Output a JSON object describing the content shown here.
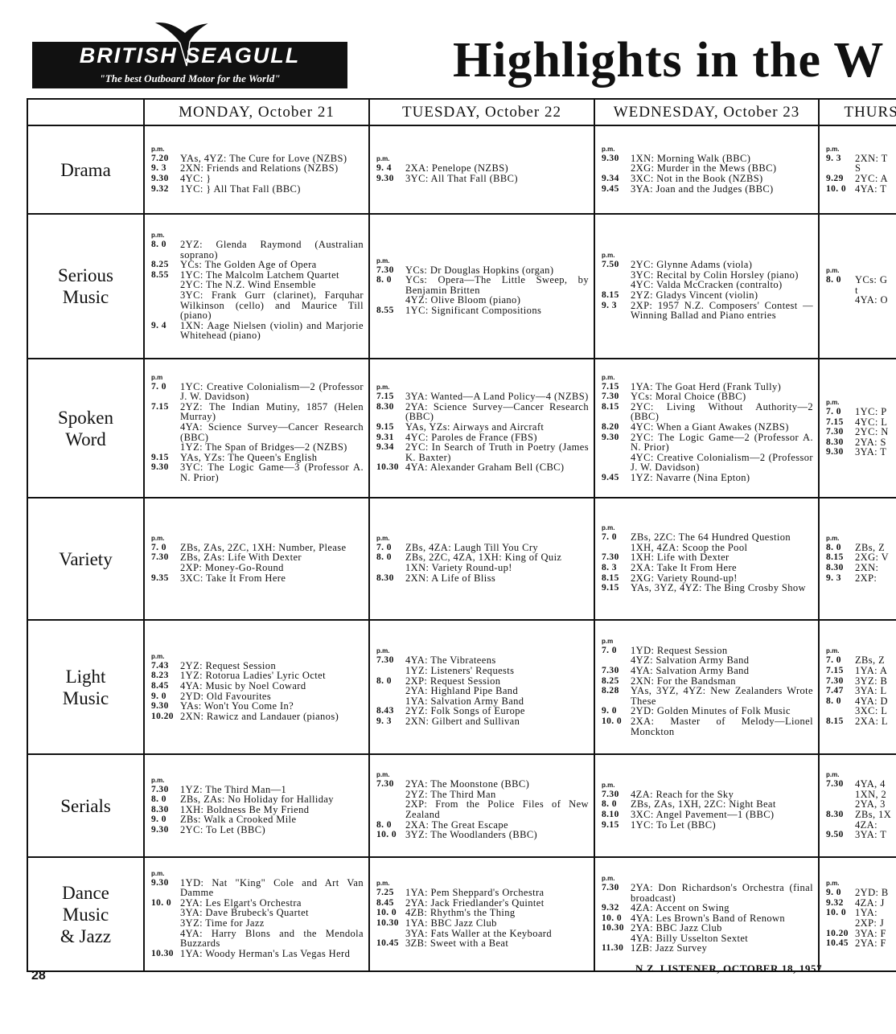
{
  "header": {
    "brand": "BRITISH SEAGULL",
    "tagline": "\"The best Outboard Motor for the World\"",
    "title": "Highlights in the W"
  },
  "columns": [
    "MONDAY, October 21",
    "TUESDAY, October 22",
    "WEDNESDAY, October 23",
    "THURS."
  ],
  "rows": [
    {
      "label_lines": [
        "Drama"
      ],
      "cells": [
        {
          "pm": "p.m.",
          "entries": [
            {
              "time": "7.20",
              "text": "YAs, 4YZ: The Cure for Love (NZBS)"
            },
            {
              "time": "9. 3",
              "text": "2XN: Friends and Relations (NZBS)"
            },
            {
              "time": "9.30",
              "text": "4YC: }"
            },
            {
              "time": "9.32",
              "text": "1YC: } All That Fall (BBC)"
            }
          ]
        },
        {
          "pm": "p.m.",
          "entries": [
            {
              "time": "9. 4",
              "text": "2XA: Penelope (NZBS)"
            },
            {
              "time": "9.30",
              "text": "3YC: All That Fall (BBC)"
            }
          ]
        },
        {
          "pm": "p.m.",
          "entries": [
            {
              "time": "9.30",
              "text": "1XN: Morning Walk (BBC)"
            },
            {
              "text": "2XG: Murder in the Mews (BBC)"
            },
            {
              "time": "9.34",
              "text": "3XC: Not in the Book (NZBS)"
            },
            {
              "time": "9.45",
              "text": "3YA: Joan and the Judges (BBC)"
            }
          ]
        },
        {
          "pm": "p.m.",
          "entries": [
            {
              "time": "9. 3",
              "text": "2XN: T"
            },
            {
              "text": "S"
            },
            {
              "time": "9.29",
              "text": "2YC: A"
            },
            {
              "time": "10. 0",
              "text": "4YA: T"
            }
          ]
        }
      ]
    },
    {
      "label_lines": [
        "Serious",
        "Music"
      ],
      "cells": [
        {
          "pm": "p.m.",
          "entries": [
            {
              "time": "8. 0",
              "text": "2YZ: Glenda Raymond (Australian soprano)"
            },
            {
              "time": "8.25",
              "text": "YCs: The Golden Age of Opera"
            },
            {
              "time": "8.55",
              "text": "1YC: The Malcolm Latchem Quartet"
            },
            {
              "text": "2YC: The N.Z. Wind Ensemble"
            },
            {
              "text": "3YC: Frank Gurr (clarinet), Farquhar Wilkinson (cello) and Maurice Till (piano)"
            },
            {
              "time": "9. 4",
              "text": "1XN: Aage Nielsen (violin) and Marjorie Whitehead (piano)"
            }
          ]
        },
        {
          "pm": "p.m.",
          "entries": [
            {
              "time": "7.30",
              "text": "YCs: Dr Douglas Hopkins (organ)"
            },
            {
              "time": "8. 0",
              "text": "YCs: Opera—The Little Sweep, by Benjamin Britten"
            },
            {
              "text": "4YZ: Olive Bloom (piano)"
            },
            {
              "time": "8.55",
              "text": "1YC: Significant Compositions"
            }
          ]
        },
        {
          "pm": "p.m.",
          "entries": [
            {
              "time": "7.50",
              "text": "2YC: Glynne Adams (viola)"
            },
            {
              "text": "3YC: Recital by Colin Horsley (piano)"
            },
            {
              "text": "4YC: Valda McCracken (contralto)"
            },
            {
              "time": "8.15",
              "text": "2YZ: Gladys Vincent (violin)"
            },
            {
              "time": "9. 3",
              "text": "2XP: 1957 N.Z. Composers' Contest — Winning Ballad and Piano entries"
            }
          ]
        },
        {
          "pm": "p.m.",
          "entries": [
            {
              "time": "8. 0",
              "text": "YCs: G"
            },
            {
              "text": "t"
            },
            {
              "text": "4YA: O"
            }
          ]
        }
      ]
    },
    {
      "label_lines": [
        "Spoken",
        "Word"
      ],
      "cells": [
        {
          "pm": "p.m",
          "entries": [
            {
              "time": "7. 0",
              "text": "1YC: Creative Colonialism—2 (Professor J. W. Davidson)"
            },
            {
              "time": "7.15",
              "text": "2YZ: The Indian Mutiny, 1857 (Helen Murray)"
            },
            {
              "text": "4YA: Science Survey—Cancer Research (BBC)"
            },
            {
              "text": "1YZ: The Span of Bridges—2 (NZBS)"
            },
            {
              "time": "9.15",
              "text": "YAs, YZs: The Queen's English"
            },
            {
              "time": "9.30",
              "text": "3YC: The Logic Game—3 (Professor A. N. Prior)"
            }
          ]
        },
        {
          "pm": "p.m.",
          "entries": [
            {
              "time": "7.15",
              "text": "3YA: Wanted—A Land Policy—4 (NZBS)"
            },
            {
              "time": "8.30",
              "text": "2YA: Science Survey—Cancer Research (BBC)"
            },
            {
              "time": "9.15",
              "text": "YAs, YZs: Airways and Aircraft"
            },
            {
              "time": "9.31",
              "text": "4YC: Paroles de France (FBS)"
            },
            {
              "time": "9.34",
              "text": "2YC: In Search of Truth in Poetry (James K. Baxter)"
            },
            {
              "time": "10.30",
              "text": "4YA: Alexander Graham Bell (CBC)"
            }
          ]
        },
        {
          "pm": "p.m.",
          "entries": [
            {
              "time": "7.15",
              "text": "1YA: The Goat Herd (Frank Tully)"
            },
            {
              "time": "7.30",
              "text": "YCs: Moral Choice (BBC)"
            },
            {
              "time": "8.15",
              "text": "2YC: Living Without Authority—2 (BBC)"
            },
            {
              "time": "8.20",
              "text": "4YC: When a Giant Awakes (NZBS)"
            },
            {
              "time": "9.30",
              "text": "2YC: The Logic Game—2 (Professor A. N. Prior)"
            },
            {
              "text": "4YC: Creative Colonialism—2 (Professor J. W. Davidson)"
            },
            {
              "time": "9.45",
              "text": "1YZ: Navarre (Nina Epton)"
            }
          ]
        },
        {
          "pm": "p.m.",
          "entries": [
            {
              "time": "7. 0",
              "text": "1YC: P"
            },
            {
              "time": "7.15",
              "text": "4YC: L"
            },
            {
              "time": "7.30",
              "text": "2YC: N"
            },
            {
              "time": "8.30",
              "text": "2YA: S"
            },
            {
              "time": "9.30",
              "text": "3YA: T"
            }
          ]
        }
      ]
    },
    {
      "label_lines": [
        "Variety"
      ],
      "cells": [
        {
          "pm": "p.m.",
          "entries": [
            {
              "time": "7. 0",
              "text": "ZBs, ZAs, 2ZC, 1XH: Number, Please"
            },
            {
              "time": "7.30",
              "text": "ZBs, ZAs: Life With Dexter"
            },
            {
              "text": "2XP: Money-Go-Round"
            },
            {
              "time": "9.35",
              "text": "3XC: Take It From Here"
            }
          ]
        },
        {
          "pm": "p.m.",
          "entries": [
            {
              "time": "7. 0",
              "text": "ZBs, 4ZA: Laugh Till You Cry"
            },
            {
              "time": "8. 0",
              "text": "ZBs, 2ZC, 4ZA, 1XH: King of Quiz"
            },
            {
              "text": "1XN: Variety Round-up!"
            },
            {
              "time": "8.30",
              "text": "2XN: A Life of Bliss"
            }
          ]
        },
        {
          "pm": "p.m.",
          "entries": [
            {
              "time": "7. 0",
              "text": "ZBs, 2ZC: The 64 Hundred Question"
            },
            {
              "text": "1XH, 4ZA: Scoop the Pool"
            },
            {
              "time": "7.30",
              "text": "1XH: Life with Dexter"
            },
            {
              "time": "8. 3",
              "text": "2XA: Take It From Here"
            },
            {
              "time": "8.15",
              "text": "2XG: Variety Round-up!"
            },
            {
              "time": "9.15",
              "text": "YAs, 3YZ, 4YZ: The Bing Crosby Show"
            }
          ]
        },
        {
          "pm": "p.m.",
          "entries": [
            {
              "time": "8. 0",
              "text": "ZBs, Z"
            },
            {
              "time": "8.15",
              "text": "2XG: V"
            },
            {
              "time": "8.30",
              "text": "2XN:"
            },
            {
              "time": "9. 3",
              "text": "2XP:"
            }
          ]
        }
      ]
    },
    {
      "label_lines": [
        "Light",
        "Music"
      ],
      "cells": [
        {
          "pm": "p.m.",
          "entries": [
            {
              "time": "7.43",
              "text": "2YZ: Request Session"
            },
            {
              "time": "8.23",
              "text": "1YZ: Rotorua Ladies' Lyric Octet"
            },
            {
              "time": "8.45",
              "text": "4YA: Music by Noel Coward"
            },
            {
              "time": "9. 0",
              "text": "2YD: Old Favourites"
            },
            {
              "time": "9.30",
              "text": "YAs: Won't You Come In?"
            },
            {
              "time": "10.20",
              "text": "2XN: Rawicz and Landauer (pianos)"
            }
          ]
        },
        {
          "pm": "p.m.",
          "entries": [
            {
              "time": "7.30",
              "text": "4YA: The Vibrateens"
            },
            {
              "text": "1YZ: Listeners' Requests"
            },
            {
              "time": "8. 0",
              "text": "2XP: Request Session"
            },
            {
              "text": "2YA: Highland Pipe Band"
            },
            {
              "text": "1YA: Salvation Army Band"
            },
            {
              "time": "8.43",
              "text": "2YZ: Folk Songs of Europe"
            },
            {
              "time": "9. 3",
              "text": "2XN: Gilbert and Sullivan"
            }
          ]
        },
        {
          "pm": "p.m",
          "entries": [
            {
              "time": "7. 0",
              "text": "1YD: Request Session"
            },
            {
              "text": "4YZ: Salvation Army Band"
            },
            {
              "time": "7.30",
              "text": "4YA: Salvation Army Band"
            },
            {
              "time": "8.25",
              "text": "2XN: For the Bandsman"
            },
            {
              "time": "8.28",
              "text": "YAs, 3YZ, 4YZ: New Zealanders Wrote These"
            },
            {
              "time": "9. 0",
              "text": "2YD: Golden Minutes of Folk Music"
            },
            {
              "time": "10. 0",
              "text": "2XA: Master of Melody—Lionel Monckton"
            }
          ]
        },
        {
          "pm": "p.m.",
          "entries": [
            {
              "time": "7. 0",
              "text": "ZBs, Z"
            },
            {
              "time": "7.15",
              "text": "1YA: A"
            },
            {
              "time": "7.30",
              "text": "3YZ: B"
            },
            {
              "time": "7.47",
              "text": "3YA: L"
            },
            {
              "time": "8. 0",
              "text": "4YA: D"
            },
            {
              "text": "3XC: L"
            },
            {
              "time": "8.15",
              "text": "2XA: L"
            }
          ]
        }
      ]
    },
    {
      "label_lines": [
        "Serials"
      ],
      "cells": [
        {
          "pm": "p.m.",
          "entries": [
            {
              "time": "7.30",
              "text": "1YZ: The Third Man—1"
            },
            {
              "time": "8. 0",
              "text": "ZBs, ZAs: No Holiday for Halliday"
            },
            {
              "time": "8.30",
              "text": "1XH: Boldness Be My Friend"
            },
            {
              "time": "9. 0",
              "text": "ZBs: Walk a Crooked Mile"
            },
            {
              "time": "9.30",
              "text": "2YC: To Let (BBC)"
            }
          ]
        },
        {
          "pm": "p.m.",
          "entries": [
            {
              "time": "7.30",
              "text": "2YA: The Moonstone (BBC)"
            },
            {
              "text": "2YZ: The Third Man"
            },
            {
              "text": "2XP: From the Police Files of New Zealand"
            },
            {
              "time": "8. 0",
              "text": "2XA: The Great Escape"
            },
            {
              "time": "10. 0",
              "text": "3YZ: The Woodlanders (BBC)"
            }
          ]
        },
        {
          "pm": "p.m.",
          "entries": [
            {
              "time": "7.30",
              "text": "4ZA: Reach for the Sky"
            },
            {
              "time": "8. 0",
              "text": "ZBs, ZAs, 1XH, 2ZC: Night Beat"
            },
            {
              "time": "8.10",
              "text": "3XC: Angel Pavement—1 (BBC)"
            },
            {
              "time": "9.15",
              "text": "1YC: To Let (BBC)"
            }
          ]
        },
        {
          "pm": "p.m.",
          "entries": [
            {
              "time": "7.30",
              "text": "4YA, 4"
            },
            {
              "text": "1XN, 2"
            },
            {
              "text": "2YA, 3"
            },
            {
              "time": "8.30",
              "text": "ZBs, 1X"
            },
            {
              "text": "4ZA:"
            },
            {
              "time": "9.50",
              "text": "3YA: T"
            }
          ]
        }
      ]
    },
    {
      "label_lines": [
        "Dance",
        "Music",
        "& Jazz"
      ],
      "cells": [
        {
          "pm": "p.m.",
          "entries": [
            {
              "time": "9.30",
              "text": "1YD: Nat \"King\" Cole and Art Van Damme"
            },
            {
              "time": "10. 0",
              "text": "2YA: Les Elgart's Orchestra"
            },
            {
              "text": "3YA: Dave Brubeck's Quartet"
            },
            {
              "text": "3YZ: Time for Jazz"
            },
            {
              "text": "4YA: Harry Blons and the Mendola Buzzards"
            },
            {
              "time": "10.30",
              "text": "1YA: Woody Herman's Las Vegas Herd"
            }
          ]
        },
        {
          "pm": "p.m.",
          "entries": [
            {
              "time": "7.25",
              "text": "1YA: Pem Sheppard's Orchestra"
            },
            {
              "time": "8.45",
              "text": "2YA: Jack Friedlander's Quintet"
            },
            {
              "time": "10. 0",
              "text": "4ZB: Rhythm's the Thing"
            },
            {
              "time": "10.30",
              "text": "1YA: BBC Jazz Club"
            },
            {
              "text": "3YA: Fats Waller at the Keyboard"
            },
            {
              "time": "10.45",
              "text": "3ZB: Sweet with a Beat"
            }
          ]
        },
        {
          "pm": "p.m.",
          "entries": [
            {
              "time": "7.30",
              "text": "2YA: Don Richardson's Orchestra (final broadcast)"
            },
            {
              "time": "9.32",
              "text": "4ZA: Accent on Swing"
            },
            {
              "time": "10. 0",
              "text": "4YA: Les Brown's Band of Renown"
            },
            {
              "time": "10.30",
              "text": "2YA: BBC Jazz Club"
            },
            {
              "text": "4YA: Billy Usselton Sextet"
            },
            {
              "time": "11.30",
              "text": "1ZB: Jazz Survey"
            }
          ]
        },
        {
          "pm": "p.m.",
          "entries": [
            {
              "time": "9. 0",
              "text": "2YD: B"
            },
            {
              "time": "9.32",
              "text": "4ZA: J"
            },
            {
              "time": "10. 0",
              "text": "1YA:"
            },
            {
              "text": "2XP: J"
            },
            {
              "time": "10.20",
              "text": "3YA: F"
            },
            {
              "time": "10.45",
              "text": "2YA: F"
            }
          ]
        }
      ]
    }
  ],
  "footer": {
    "page_number": "28",
    "publication": "N.Z. LISTENER, OCTOBER 18, 1957."
  }
}
